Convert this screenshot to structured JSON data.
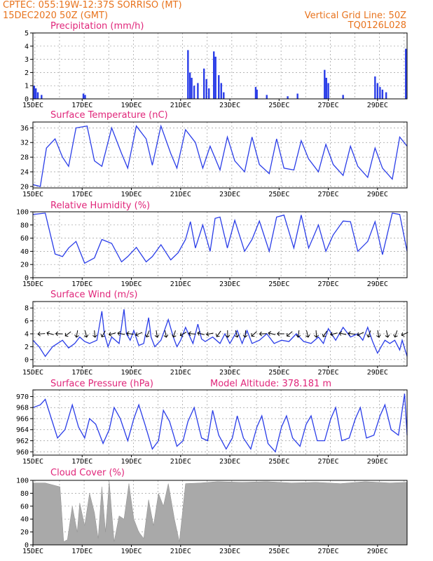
{
  "header": {
    "line1_left": "CPTEC:   055:19W-12:37S   SORRISO (MT)",
    "line2_left": "15DEC2020 50Z (GMT)",
    "line2_right": "Vertical Grid Line: 50Z",
    "line3_right": "TQ0126L028"
  },
  "colors": {
    "header": "#e8731d",
    "title": "#e0267a",
    "series": "#2a3de8",
    "cloud": "#a9a9a9"
  },
  "x_tick_labels": [
    "15DEC",
    "17DEC",
    "19DEC",
    "21DEC",
    "23DEC",
    "25DEC",
    "27DEC",
    "29DEC"
  ],
  "panels": {
    "precip": {
      "title": "Precipitation (mm/h)"
    },
    "temp": {
      "title": "Surface Temperature (nC)"
    },
    "rh": {
      "title": "Relative Humidity (%)"
    },
    "wind": {
      "title": "Surface Wind (m/s)"
    },
    "pres": {
      "title": "Surface Pressure (hPa)",
      "extra": "Model Altitude: 378.181 m"
    },
    "cloud": {
      "title": "Cloud Cover (%)"
    }
  },
  "chart_data": [
    {
      "type": "bar",
      "title": "Precipitation (mm/h)",
      "x_unit": "days since 15DEC2020 00Z",
      "ylim": [
        0,
        5
      ],
      "yticks": [
        0,
        1,
        2,
        3,
        4,
        5
      ],
      "values": [
        [
          0.05,
          1.0
        ],
        [
          0.12,
          0.8
        ],
        [
          0.2,
          0.5
        ],
        [
          0.35,
          0.3
        ],
        [
          2.05,
          0.4
        ],
        [
          2.12,
          0.3
        ],
        [
          6.3,
          3.7
        ],
        [
          6.38,
          2.0
        ],
        [
          6.45,
          1.6
        ],
        [
          6.55,
          1.0
        ],
        [
          6.7,
          1.2
        ],
        [
          6.95,
          2.3
        ],
        [
          7.05,
          1.5
        ],
        [
          7.15,
          0.8
        ],
        [
          7.35,
          3.6
        ],
        [
          7.42,
          3.2
        ],
        [
          7.55,
          1.8
        ],
        [
          7.65,
          1.2
        ],
        [
          7.75,
          0.5
        ],
        [
          9.05,
          0.9
        ],
        [
          9.1,
          0.7
        ],
        [
          9.5,
          0.3
        ],
        [
          10.35,
          0.2
        ],
        [
          10.75,
          0.4
        ],
        [
          11.85,
          2.2
        ],
        [
          11.92,
          1.6
        ],
        [
          12.0,
          1.2
        ],
        [
          12.6,
          0.3
        ],
        [
          13.9,
          1.7
        ],
        [
          14.0,
          1.2
        ],
        [
          14.1,
          0.9
        ],
        [
          14.2,
          0.7
        ],
        [
          14.35,
          0.5
        ],
        [
          15.15,
          3.8
        ]
      ]
    },
    {
      "type": "line",
      "title": "Surface Temperature (nC)",
      "x_unit": "days since 15DEC2020 00Z",
      "ylim": [
        19.6,
        37.6
      ],
      "yticks": [
        20,
        24,
        28,
        32,
        36
      ],
      "x": [
        0,
        0.3,
        0.55,
        0.9,
        1.2,
        1.45,
        1.75,
        2.2,
        2.5,
        2.8,
        3.2,
        3.6,
        3.85,
        4.2,
        4.6,
        4.85,
        5.2,
        5.6,
        5.85,
        6.2,
        6.6,
        6.9,
        7.2,
        7.6,
        7.9,
        8.2,
        8.6,
        8.9,
        9.2,
        9.6,
        9.9,
        10.2,
        10.6,
        10.9,
        11.2,
        11.6,
        11.9,
        12.2,
        12.6,
        12.9,
        13.2,
        13.6,
        13.9,
        14.2,
        14.6,
        14.9,
        15.2
      ],
      "y": [
        20.5,
        20,
        30.5,
        33,
        28,
        25.5,
        36,
        36.5,
        27,
        25.5,
        36,
        29,
        25,
        36.5,
        33,
        25.8,
        36.5,
        29,
        25,
        35.5,
        32,
        25,
        31,
        24.5,
        33.5,
        27,
        24,
        33.5,
        26,
        23.5,
        33,
        25,
        24.5,
        32.5,
        27.5,
        24,
        31.5,
        26,
        23,
        31,
        25.5,
        22.5,
        30.5,
        25,
        22,
        33.5,
        31
      ]
    },
    {
      "type": "line",
      "title": "Relative Humidity (%)",
      "x_unit": "days since 15DEC2020 00Z",
      "ylim": [
        0,
        100
      ],
      "yticks": [
        0,
        20,
        40,
        60,
        80,
        100
      ],
      "x": [
        0,
        0.5,
        0.9,
        1.2,
        1.45,
        1.75,
        2.1,
        2.5,
        2.8,
        3.2,
        3.6,
        3.85,
        4.2,
        4.6,
        4.85,
        5.2,
        5.6,
        5.9,
        6.2,
        6.4,
        6.6,
        6.9,
        7.2,
        7.4,
        7.6,
        7.9,
        8.2,
        8.6,
        8.9,
        9.2,
        9.6,
        9.9,
        10.2,
        10.6,
        10.9,
        11.2,
        11.6,
        11.9,
        12.2,
        12.6,
        12.9,
        13.2,
        13.6,
        13.9,
        14.2,
        14.6,
        14.9,
        15.2
      ],
      "y": [
        96,
        98,
        36,
        32,
        45,
        55,
        22,
        30,
        58,
        52,
        24,
        32,
        46,
        24,
        32,
        50,
        27,
        38,
        58,
        85,
        45,
        80,
        40,
        90,
        92,
        45,
        87,
        40,
        58,
        86,
        40,
        92,
        95,
        45,
        95,
        45,
        80,
        40,
        65,
        86,
        85,
        40,
        55,
        85,
        35,
        98,
        96,
        40
      ]
    },
    {
      "type": "line",
      "title": "Surface Wind (m/s)",
      "x_unit": "days since 15DEC2020 00Z",
      "ylim": [
        -1,
        9
      ],
      "yticks": [
        0,
        2,
        4,
        6,
        8
      ],
      "x": [
        0,
        0.25,
        0.5,
        0.8,
        1.0,
        1.2,
        1.45,
        1.7,
        1.9,
        2.1,
        2.3,
        2.6,
        2.8,
        2.9,
        3.05,
        3.2,
        3.5,
        3.7,
        3.8,
        3.95,
        4.1,
        4.3,
        4.5,
        4.7,
        4.8,
        4.95,
        5.2,
        5.5,
        5.7,
        5.85,
        6.0,
        6.2,
        6.5,
        6.7,
        6.85,
        7.0,
        7.3,
        7.6,
        7.8,
        8.0,
        8.3,
        8.5,
        8.7,
        8.9,
        9.2,
        9.5,
        9.8,
        10.1,
        10.4,
        10.7,
        11.0,
        11.3,
        11.6,
        11.8,
        12.0,
        12.3,
        12.6,
        12.9,
        13.2,
        13.4,
        13.6,
        13.8,
        14.0,
        14.3,
        14.5,
        14.7,
        14.9,
        15.0,
        15.2
      ],
      "y": [
        3,
        2,
        0.5,
        2,
        2.5,
        3,
        1.8,
        2.5,
        3.5,
        2.8,
        2.5,
        3,
        7.5,
        4,
        2,
        3.5,
        2.5,
        7.8,
        4,
        3,
        4.5,
        2.2,
        2.5,
        6.5,
        3.5,
        2,
        3,
        6.2,
        3.5,
        2,
        3,
        5,
        2.5,
        5.5,
        3.2,
        2.8,
        3.5,
        2.5,
        4,
        2.5,
        4.5,
        2.5,
        4.5,
        2.5,
        3,
        4,
        2.5,
        3,
        2.8,
        4,
        2.8,
        2.5,
        3.5,
        2.5,
        4.8,
        3,
        5,
        3.5,
        4,
        3,
        5,
        2.8,
        1,
        3,
        2.5,
        3,
        1.5,
        3,
        0.5
      ]
    },
    {
      "type": "line",
      "title": "Surface Pressure (hPa)",
      "x_unit": "days since 15DEC2020 00Z",
      "ylim": [
        959.4,
        971.2
      ],
      "yticks": [
        960,
        962,
        964,
        966,
        968,
        970
      ],
      "x": [
        0,
        0.3,
        0.5,
        0.75,
        1.0,
        1.3,
        1.6,
        1.85,
        2.1,
        2.3,
        2.55,
        2.85,
        3.1,
        3.3,
        3.55,
        3.85,
        4.1,
        4.3,
        4.55,
        4.85,
        5.1,
        5.3,
        5.55,
        5.85,
        6.1,
        6.3,
        6.55,
        6.85,
        7.1,
        7.3,
        7.55,
        7.85,
        8.1,
        8.3,
        8.55,
        8.85,
        9.1,
        9.3,
        9.55,
        9.85,
        10.1,
        10.3,
        10.55,
        10.85,
        11.1,
        11.3,
        11.55,
        11.85,
        12.1,
        12.3,
        12.55,
        12.85,
        13.1,
        13.3,
        13.55,
        13.85,
        14.1,
        14.3,
        14.55,
        14.85,
        15.1,
        15.2
      ],
      "y": [
        968,
        968.5,
        969.5,
        966,
        962.5,
        964,
        968.5,
        964.5,
        962.5,
        966,
        965,
        961.5,
        964,
        968,
        966,
        962,
        966,
        968.5,
        965,
        960.5,
        962,
        967.5,
        965.5,
        961,
        962,
        965.5,
        968,
        962.5,
        962,
        967.5,
        963,
        960.5,
        962.5,
        966.5,
        962.5,
        960.5,
        964.5,
        966.5,
        961.5,
        960,
        964.5,
        966.5,
        962.5,
        961,
        965,
        966.5,
        962,
        962,
        966,
        968,
        962,
        962.5,
        966,
        968,
        962.5,
        963,
        966.5,
        968.5,
        964,
        963,
        970.5,
        963
      ]
    },
    {
      "type": "area",
      "title": "Cloud Cover (%)",
      "x_unit": "days since 15DEC2020 00Z",
      "ylim": [
        0,
        100
      ],
      "yticks": [
        0,
        20,
        40,
        60,
        80,
        100
      ],
      "x": [
        0,
        0.5,
        1.1,
        1.25,
        1.4,
        1.6,
        1.8,
        1.9,
        2.1,
        2.3,
        2.5,
        2.65,
        2.8,
        2.95,
        3.1,
        3.3,
        3.5,
        3.7,
        3.9,
        4.1,
        4.3,
        4.5,
        4.7,
        4.9,
        5.1,
        5.3,
        5.5,
        5.75,
        5.95,
        6.2,
        6.8,
        7.5,
        8.5,
        9.5,
        10.5,
        11.5,
        12.5,
        13.5,
        14.5,
        15.2
      ],
      "y": [
        96,
        96,
        90,
        5,
        8,
        60,
        20,
        65,
        30,
        80,
        50,
        10,
        90,
        20,
        98,
        5,
        45,
        40,
        95,
        40,
        20,
        10,
        70,
        30,
        80,
        60,
        95,
        40,
        5,
        95,
        96,
        98,
        97,
        98,
        96,
        97,
        95,
        98,
        96,
        97
      ]
    }
  ]
}
